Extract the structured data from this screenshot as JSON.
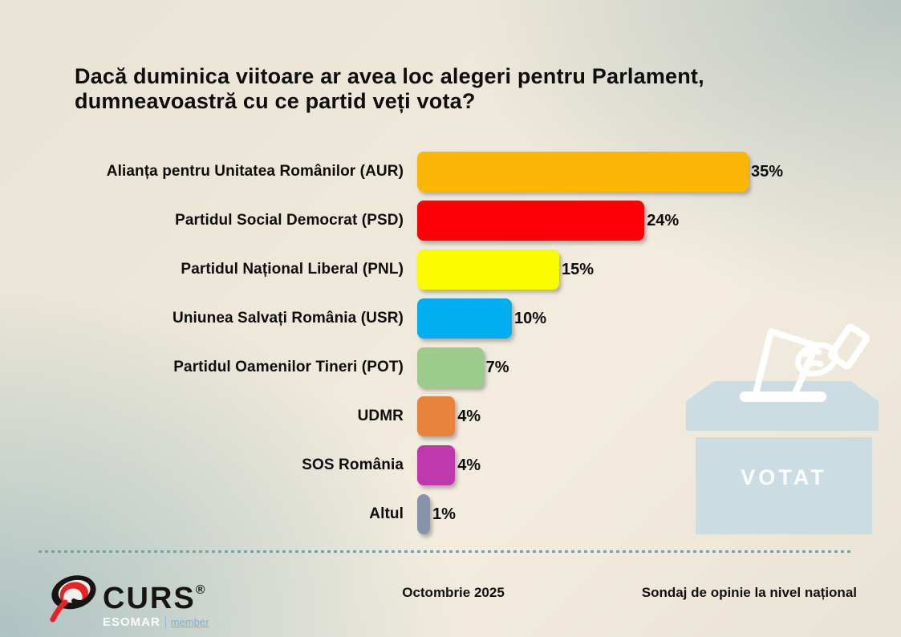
{
  "title": "Dacă duminica viitoare ar avea loc alegeri pentru Parlament, dumneavoastră cu ce partid veți vota?",
  "chart_data": {
    "type": "bar",
    "orientation": "horizontal",
    "title": "Dacă duminica viitoare ar avea loc alegeri pentru Parlament, dumneavoastră cu ce partid veți vota?",
    "categories": [
      "Alianța pentru Unitatea Românilor (AUR)",
      "Partidul Social Democrat (PSD)",
      "Partidul Național Liberal (PNL)",
      "Uniunea Salvați România (USR)",
      "Partidul Oamenilor Tineri (POT)",
      "UDMR",
      "SOS România",
      "Altul"
    ],
    "values": [
      35,
      24,
      15,
      10,
      7,
      4,
      4,
      1
    ],
    "value_labels": [
      "35%",
      "24%",
      "15%",
      "10%",
      "7%",
      "4%",
      "4%",
      "1%"
    ],
    "bar_colors": [
      "#fcb608",
      "#fb0007",
      "#fbfb00",
      "#00aeef",
      "#9dcb8b",
      "#e8823d",
      "#bf39ac",
      "#8793a9"
    ],
    "xlabel": "",
    "ylabel": "",
    "xlim": [
      0,
      35
    ],
    "grid": false,
    "legend": "none"
  },
  "ballot_box": {
    "label": "VOTAT",
    "box_color": "#cbdde3",
    "outline_color": "#ffffff"
  },
  "footer": {
    "date": "Octombrie 2025",
    "note": "Sondaj de opinie la nivel național",
    "logo_name": "CURS",
    "logo_registered": "®",
    "logo_sub_main": "ESOMAR",
    "logo_sub_member": "member"
  },
  "colors": {
    "background_beige": "#efe9db",
    "background_blue": "#c3d3d6",
    "title_text": "#0d0d0d",
    "dotted_separator": "#7da0a6",
    "logo_red": "#e42528",
    "logo_black": "#181411"
  }
}
